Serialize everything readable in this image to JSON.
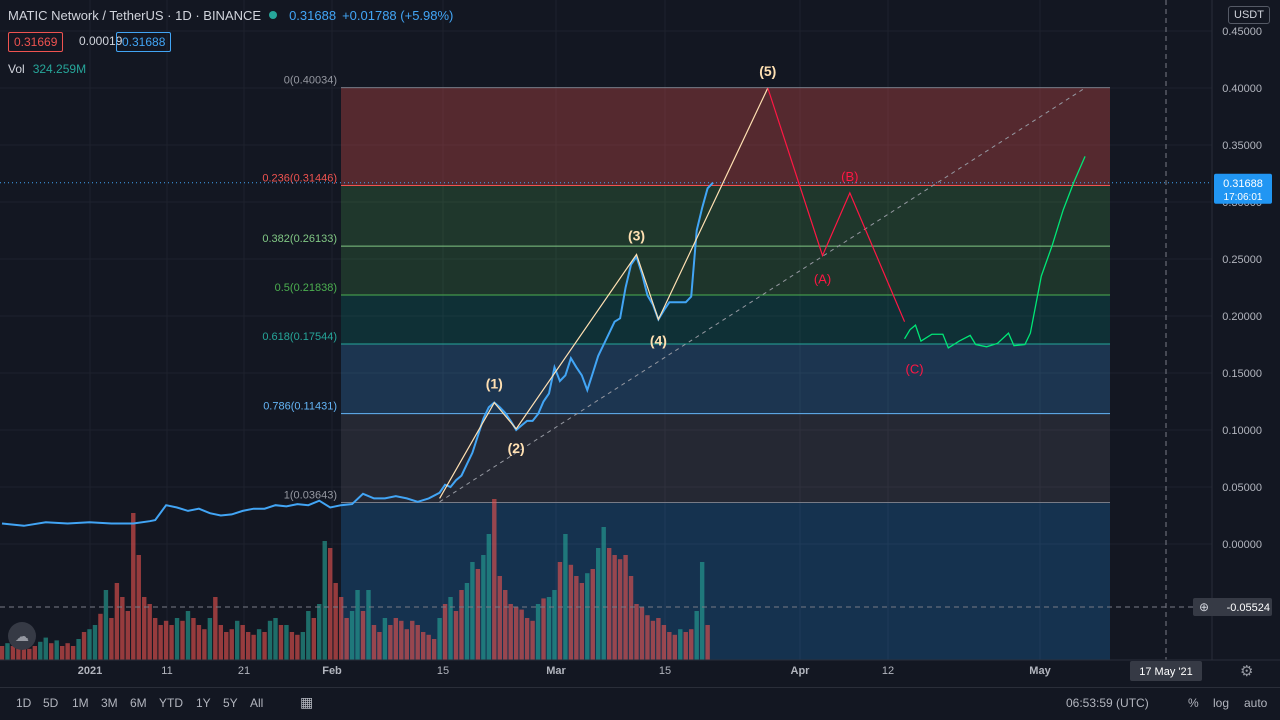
{
  "header": {
    "symbol": "MATIC Network / TetherUS · 1D · BINANCE",
    "last": "0.31688",
    "change": "+0.01788 (+5.98%)",
    "bid": "0.31669",
    "spread": "0.00019",
    "ask": "0.31688",
    "vol_label": "Vol",
    "vol_value": "324.259M",
    "currency": "USDT"
  },
  "colors": {
    "up": "#26a69a",
    "down": "#ef5350",
    "line": "#42a5f5",
    "wave": "#ffe0b2",
    "corrective": "#ff1744",
    "projection": "#00e676"
  },
  "chart_data": {
    "type": "line",
    "title": "MATIC Network / TetherUS · 1D · BINANCE",
    "ylim": [
      -0.095,
      0.46
    ],
    "y_ticks": [
      0.45,
      0.4,
      0.35,
      0.3,
      0.25,
      0.2,
      0.15,
      0.1,
      0.05,
      0.0
    ],
    "x_ticks": [
      "2021",
      "11",
      "21",
      "Feb",
      "15",
      "Mar",
      "15",
      "Apr",
      "12",
      "May"
    ],
    "price_label": {
      "value": "0.31688",
      "countdown": "17:06:01"
    },
    "crosshair": {
      "price": "-0.05524",
      "date": "17 May '21"
    },
    "price_series": [
      [
        0,
        0.018
      ],
      [
        4,
        0.016
      ],
      [
        8,
        0.019
      ],
      [
        12,
        0.018
      ],
      [
        16,
        0.019
      ],
      [
        20,
        0.018
      ],
      [
        24,
        0.018
      ],
      [
        27,
        0.02
      ],
      [
        28,
        0.021
      ],
      [
        30,
        0.034
      ],
      [
        32,
        0.032
      ],
      [
        34,
        0.029
      ],
      [
        36,
        0.031
      ],
      [
        38,
        0.027
      ],
      [
        40,
        0.025
      ],
      [
        42,
        0.026
      ],
      [
        44,
        0.029
      ],
      [
        46,
        0.031
      ],
      [
        48,
        0.031
      ],
      [
        50,
        0.034
      ],
      [
        52,
        0.033
      ],
      [
        54,
        0.035
      ],
      [
        56,
        0.034
      ],
      [
        58,
        0.038
      ],
      [
        60,
        0.032
      ],
      [
        62,
        0.034
      ],
      [
        64,
        0.035
      ],
      [
        66,
        0.044
      ],
      [
        68,
        0.04
      ],
      [
        70,
        0.04
      ],
      [
        72,
        0.042
      ],
      [
        74,
        0.04
      ],
      [
        76,
        0.037
      ],
      [
        78,
        0.04
      ],
      [
        80,
        0.045
      ],
      [
        81,
        0.052
      ],
      [
        82,
        0.05
      ],
      [
        83,
        0.056
      ],
      [
        84,
        0.06
      ],
      [
        85,
        0.07
      ],
      [
        86,
        0.08
      ],
      [
        87,
        0.095
      ],
      [
        88,
        0.11
      ],
      [
        89,
        0.12
      ],
      [
        90,
        0.124
      ],
      [
        91,
        0.12
      ],
      [
        92,
        0.115
      ],
      [
        93,
        0.108
      ],
      [
        94,
        0.1
      ],
      [
        95,
        0.104
      ],
      [
        96,
        0.108
      ],
      [
        97,
        0.108
      ],
      [
        98,
        0.114
      ],
      [
        99,
        0.125
      ],
      [
        100,
        0.132
      ],
      [
        101,
        0.155
      ],
      [
        102,
        0.143
      ],
      [
        103,
        0.148
      ],
      [
        104,
        0.163
      ],
      [
        105,
        0.155
      ],
      [
        106,
        0.148
      ],
      [
        107,
        0.135
      ],
      [
        108,
        0.15
      ],
      [
        109,
        0.165
      ],
      [
        110,
        0.175
      ],
      [
        111,
        0.185
      ],
      [
        112,
        0.195
      ],
      [
        113,
        0.198
      ],
      [
        114,
        0.225
      ],
      [
        115,
        0.245
      ],
      [
        116,
        0.252
      ],
      [
        117,
        0.237
      ],
      [
        118,
        0.218
      ],
      [
        119,
        0.21
      ],
      [
        120,
        0.197
      ],
      [
        121,
        0.205
      ],
      [
        122,
        0.212
      ],
      [
        123,
        0.212
      ],
      [
        124,
        0.212
      ],
      [
        125,
        0.212
      ],
      [
        126,
        0.217
      ],
      [
        127,
        0.275
      ],
      [
        128,
        0.295
      ],
      [
        129,
        0.312
      ],
      [
        130,
        0.317
      ]
    ],
    "fibonacci": [
      {
        "ratio": "0",
        "value": "0.40034"
      },
      {
        "ratio": "0.236",
        "value": "0.31446"
      },
      {
        "ratio": "0.382",
        "value": "0.26133"
      },
      {
        "ratio": "0.5",
        "value": "0.21838"
      },
      {
        "ratio": "0.618",
        "value": "0.17544"
      },
      {
        "ratio": "0.786",
        "value": "0.11431"
      },
      {
        "ratio": "1",
        "value": "0.03643"
      }
    ],
    "elliott_impulse": [
      {
        "label": "",
        "x": 80,
        "y": 0.04
      },
      {
        "label": "(1)",
        "x": 90,
        "y": 0.124
      },
      {
        "label": "(2)",
        "x": 94,
        "y": 0.101
      },
      {
        "label": "(3)",
        "x": 116,
        "y": 0.254
      },
      {
        "label": "(4)",
        "x": 120,
        "y": 0.197
      },
      {
        "label": "(5)",
        "x": 140,
        "y": 0.4
      }
    ],
    "elliott_correction": [
      {
        "label": "",
        "x": 140,
        "y": 0.4
      },
      {
        "label": "(A)",
        "x": 150,
        "y": 0.253
      },
      {
        "label": "(B)",
        "x": 155,
        "y": 0.308
      },
      {
        "label": "(C)",
        "x": 165,
        "y": 0.195
      }
    ],
    "projection": [
      [
        165,
        0.18
      ],
      [
        166,
        0.188
      ],
      [
        167,
        0.192
      ],
      [
        168,
        0.178
      ],
      [
        170,
        0.184
      ],
      [
        172,
        0.184
      ],
      [
        173,
        0.172
      ],
      [
        175,
        0.178
      ],
      [
        177,
        0.183
      ],
      [
        178,
        0.175
      ],
      [
        180,
        0.173
      ],
      [
        182,
        0.176
      ],
      [
        184,
        0.185
      ],
      [
        185,
        0.174
      ],
      [
        187,
        0.175
      ],
      [
        188,
        0.185
      ],
      [
        190,
        0.235
      ],
      [
        192,
        0.262
      ],
      [
        194,
        0.293
      ],
      [
        196,
        0.318
      ],
      [
        198,
        0.34
      ]
    ],
    "trendline": {
      "x1": 80,
      "y1": 0.037,
      "x2": 198,
      "y2": 0.4
    },
    "volume": [
      [
        0,
        0.1
      ],
      [
        1,
        0.12
      ],
      [
        2,
        0.1
      ],
      [
        3,
        0.14
      ],
      [
        4,
        0.1
      ],
      [
        5,
        0.08
      ],
      [
        6,
        0.1
      ],
      [
        7,
        0.13
      ],
      [
        8,
        0.16
      ],
      [
        9,
        0.12
      ],
      [
        10,
        0.14
      ],
      [
        11,
        0.1
      ],
      [
        12,
        0.12
      ],
      [
        13,
        0.1
      ],
      [
        14,
        0.15
      ],
      [
        15,
        0.2
      ],
      [
        16,
        0.22
      ],
      [
        17,
        0.25
      ],
      [
        18,
        0.33
      ],
      [
        19,
        0.5
      ],
      [
        20,
        0.3
      ],
      [
        21,
        0.55
      ],
      [
        22,
        0.45
      ],
      [
        23,
        0.35
      ],
      [
        24,
        1.05
      ],
      [
        25,
        0.75
      ],
      [
        26,
        0.45
      ],
      [
        27,
        0.4
      ],
      [
        28,
        0.3
      ],
      [
        29,
        0.25
      ],
      [
        30,
        0.28
      ],
      [
        31,
        0.25
      ],
      [
        32,
        0.3
      ],
      [
        33,
        0.28
      ],
      [
        34,
        0.35
      ],
      [
        35,
        0.3
      ],
      [
        36,
        0.25
      ],
      [
        37,
        0.22
      ],
      [
        38,
        0.3
      ],
      [
        39,
        0.45
      ],
      [
        40,
        0.25
      ],
      [
        41,
        0.2
      ],
      [
        42,
        0.22
      ],
      [
        43,
        0.28
      ],
      [
        44,
        0.25
      ],
      [
        45,
        0.2
      ],
      [
        46,
        0.18
      ],
      [
        47,
        0.22
      ],
      [
        48,
        0.2
      ],
      [
        49,
        0.28
      ],
      [
        50,
        0.3
      ],
      [
        51,
        0.25
      ],
      [
        52,
        0.25
      ],
      [
        53,
        0.2
      ],
      [
        54,
        0.18
      ],
      [
        55,
        0.2
      ],
      [
        56,
        0.35
      ],
      [
        57,
        0.3
      ],
      [
        58,
        0.4
      ],
      [
        59,
        0.85
      ],
      [
        60,
        0.8
      ],
      [
        61,
        0.55
      ],
      [
        62,
        0.45
      ],
      [
        63,
        0.3
      ],
      [
        64,
        0.35
      ],
      [
        65,
        0.5
      ],
      [
        66,
        0.35
      ],
      [
        67,
        0.5
      ],
      [
        68,
        0.25
      ],
      [
        69,
        0.2
      ],
      [
        70,
        0.3
      ],
      [
        71,
        0.25
      ],
      [
        72,
        0.3
      ],
      [
        73,
        0.28
      ],
      [
        74,
        0.22
      ],
      [
        75,
        0.28
      ],
      [
        76,
        0.25
      ],
      [
        77,
        0.2
      ],
      [
        78,
        0.18
      ],
      [
        79,
        0.15
      ],
      [
        80,
        0.3
      ],
      [
        81,
        0.4
      ],
      [
        82,
        0.45
      ],
      [
        83,
        0.35
      ],
      [
        84,
        0.5
      ],
      [
        85,
        0.55
      ],
      [
        86,
        0.7
      ],
      [
        87,
        0.65
      ],
      [
        88,
        0.75
      ],
      [
        89,
        0.9
      ],
      [
        90,
        1.15
      ],
      [
        91,
        0.6
      ],
      [
        92,
        0.5
      ],
      [
        93,
        0.4
      ],
      [
        94,
        0.38
      ],
      [
        95,
        0.36
      ],
      [
        96,
        0.3
      ],
      [
        97,
        0.28
      ],
      [
        98,
        0.4
      ],
      [
        99,
        0.44
      ],
      [
        100,
        0.45
      ],
      [
        101,
        0.5
      ],
      [
        102,
        0.7
      ],
      [
        103,
        0.9
      ],
      [
        104,
        0.68
      ],
      [
        105,
        0.6
      ],
      [
        106,
        0.55
      ],
      [
        107,
        0.62
      ],
      [
        108,
        0.65
      ],
      [
        109,
        0.8
      ],
      [
        110,
        0.95
      ],
      [
        111,
        0.8
      ],
      [
        112,
        0.75
      ],
      [
        113,
        0.72
      ],
      [
        114,
        0.75
      ],
      [
        115,
        0.6
      ],
      [
        116,
        0.4
      ],
      [
        117,
        0.38
      ],
      [
        118,
        0.32
      ],
      [
        119,
        0.28
      ],
      [
        120,
        0.3
      ],
      [
        121,
        0.25
      ],
      [
        122,
        0.2
      ],
      [
        123,
        0.18
      ],
      [
        124,
        0.22
      ],
      [
        125,
        0.2
      ],
      [
        126,
        0.22
      ],
      [
        127,
        0.35
      ],
      [
        128,
        0.7
      ],
      [
        129,
        0.25
      ]
    ]
  },
  "bottom_bar": {
    "timeframes": [
      "1D",
      "5D",
      "1M",
      "3M",
      "6M",
      "YTD",
      "1Y",
      "5Y",
      "All"
    ],
    "clock": "06:53:59 (UTC)",
    "percent": "%",
    "log": "log",
    "auto": "auto"
  }
}
